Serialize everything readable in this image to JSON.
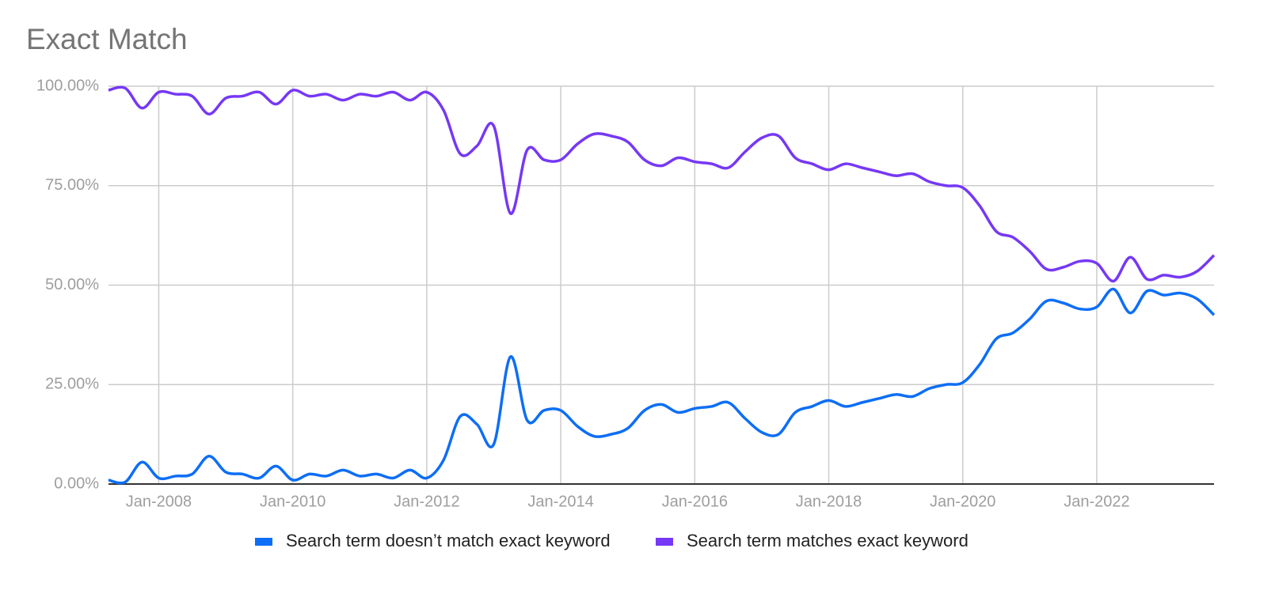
{
  "chart_data": {
    "type": "line",
    "title": "Exact Match",
    "x": [
      "2007-04",
      "2007-07",
      "2007-10",
      "2008-01",
      "2008-04",
      "2008-07",
      "2008-10",
      "2009-01",
      "2009-04",
      "2009-07",
      "2009-10",
      "2010-01",
      "2010-04",
      "2010-07",
      "2010-10",
      "2011-01",
      "2011-04",
      "2011-07",
      "2011-10",
      "2012-01",
      "2012-04",
      "2012-07",
      "2012-10",
      "2013-01",
      "2013-04",
      "2013-07",
      "2013-10",
      "2014-01",
      "2014-04",
      "2014-07",
      "2014-10",
      "2015-01",
      "2015-04",
      "2015-07",
      "2015-10",
      "2016-01",
      "2016-04",
      "2016-07",
      "2016-10",
      "2017-01",
      "2017-04",
      "2017-07",
      "2017-10",
      "2018-01",
      "2018-04",
      "2018-07",
      "2018-10",
      "2019-01",
      "2019-04",
      "2019-07",
      "2019-10",
      "2020-01",
      "2020-04",
      "2020-07",
      "2020-10",
      "2021-01",
      "2021-04",
      "2021-07",
      "2021-10",
      "2022-01",
      "2022-04",
      "2022-07",
      "2022-10",
      "2023-01",
      "2023-04",
      "2023-07",
      "2023-10"
    ],
    "series": [
      {
        "name": "Search term doesn’t match exact keyword",
        "color": "#0d6ef5",
        "values": [
          1,
          0.5,
          5.5,
          1.5,
          2,
          2.5,
          7,
          3,
          2.5,
          1.5,
          4.5,
          1,
          2.5,
          2,
          3.5,
          2,
          2.5,
          1.5,
          3.5,
          1.5,
          6,
          17,
          15,
          10,
          32,
          16,
          18.5,
          18.5,
          14.5,
          12,
          12.5,
          14,
          18.5,
          20,
          18,
          19,
          19.5,
          20.5,
          16.5,
          13,
          12.5,
          18,
          19.5,
          21,
          19.5,
          20.5,
          21.5,
          22.5,
          22,
          24,
          25,
          25.5,
          30,
          36.5,
          38,
          41.5,
          46,
          45.5,
          44,
          44.5,
          49,
          43,
          48.5,
          47.5,
          48,
          46.5,
          42.5
        ]
      },
      {
        "name": "Search term matches exact keyword",
        "color": "#7638f5",
        "values": [
          99,
          99.5,
          94.5,
          98.5,
          98,
          97.5,
          93,
          97,
          97.5,
          98.5,
          95.5,
          99,
          97.5,
          98,
          96.5,
          98,
          97.5,
          98.5,
          96.5,
          98.5,
          94,
          83,
          85,
          90,
          68,
          84,
          81.5,
          81.5,
          85.5,
          88,
          87.5,
          86,
          81.5,
          80,
          82,
          81,
          80.5,
          79.5,
          83.5,
          87,
          87.5,
          82,
          80.5,
          79,
          80.5,
          79.5,
          78.5,
          77.5,
          78,
          76,
          75,
          74.5,
          70,
          63.5,
          62,
          58.5,
          54,
          54.5,
          56,
          55.5,
          51,
          57,
          51.5,
          52.5,
          52,
          53.5,
          57.5
        ]
      }
    ],
    "xlim": [
      "2007-04",
      "2023-10"
    ],
    "xticks": [
      {
        "value": "2008-01",
        "label": "Jan-2008"
      },
      {
        "value": "2010-01",
        "label": "Jan-2010"
      },
      {
        "value": "2012-01",
        "label": "Jan-2012"
      },
      {
        "value": "2014-01",
        "label": "Jan-2014"
      },
      {
        "value": "2016-01",
        "label": "Jan-2016"
      },
      {
        "value": "2018-01",
        "label": "Jan-2018"
      },
      {
        "value": "2020-01",
        "label": "Jan-2020"
      },
      {
        "value": "2022-01",
        "label": "Jan-2022"
      }
    ],
    "ylim": [
      0,
      100
    ],
    "yticks": [
      {
        "value": 0,
        "label": "0.00%"
      },
      {
        "value": 25,
        "label": "25.00%"
      },
      {
        "value": 50,
        "label": "50.00%"
      },
      {
        "value": 75,
        "label": "75.00%"
      },
      {
        "value": 100,
        "label": "100.00%"
      }
    ],
    "grid": true,
    "legend": "bottom"
  }
}
